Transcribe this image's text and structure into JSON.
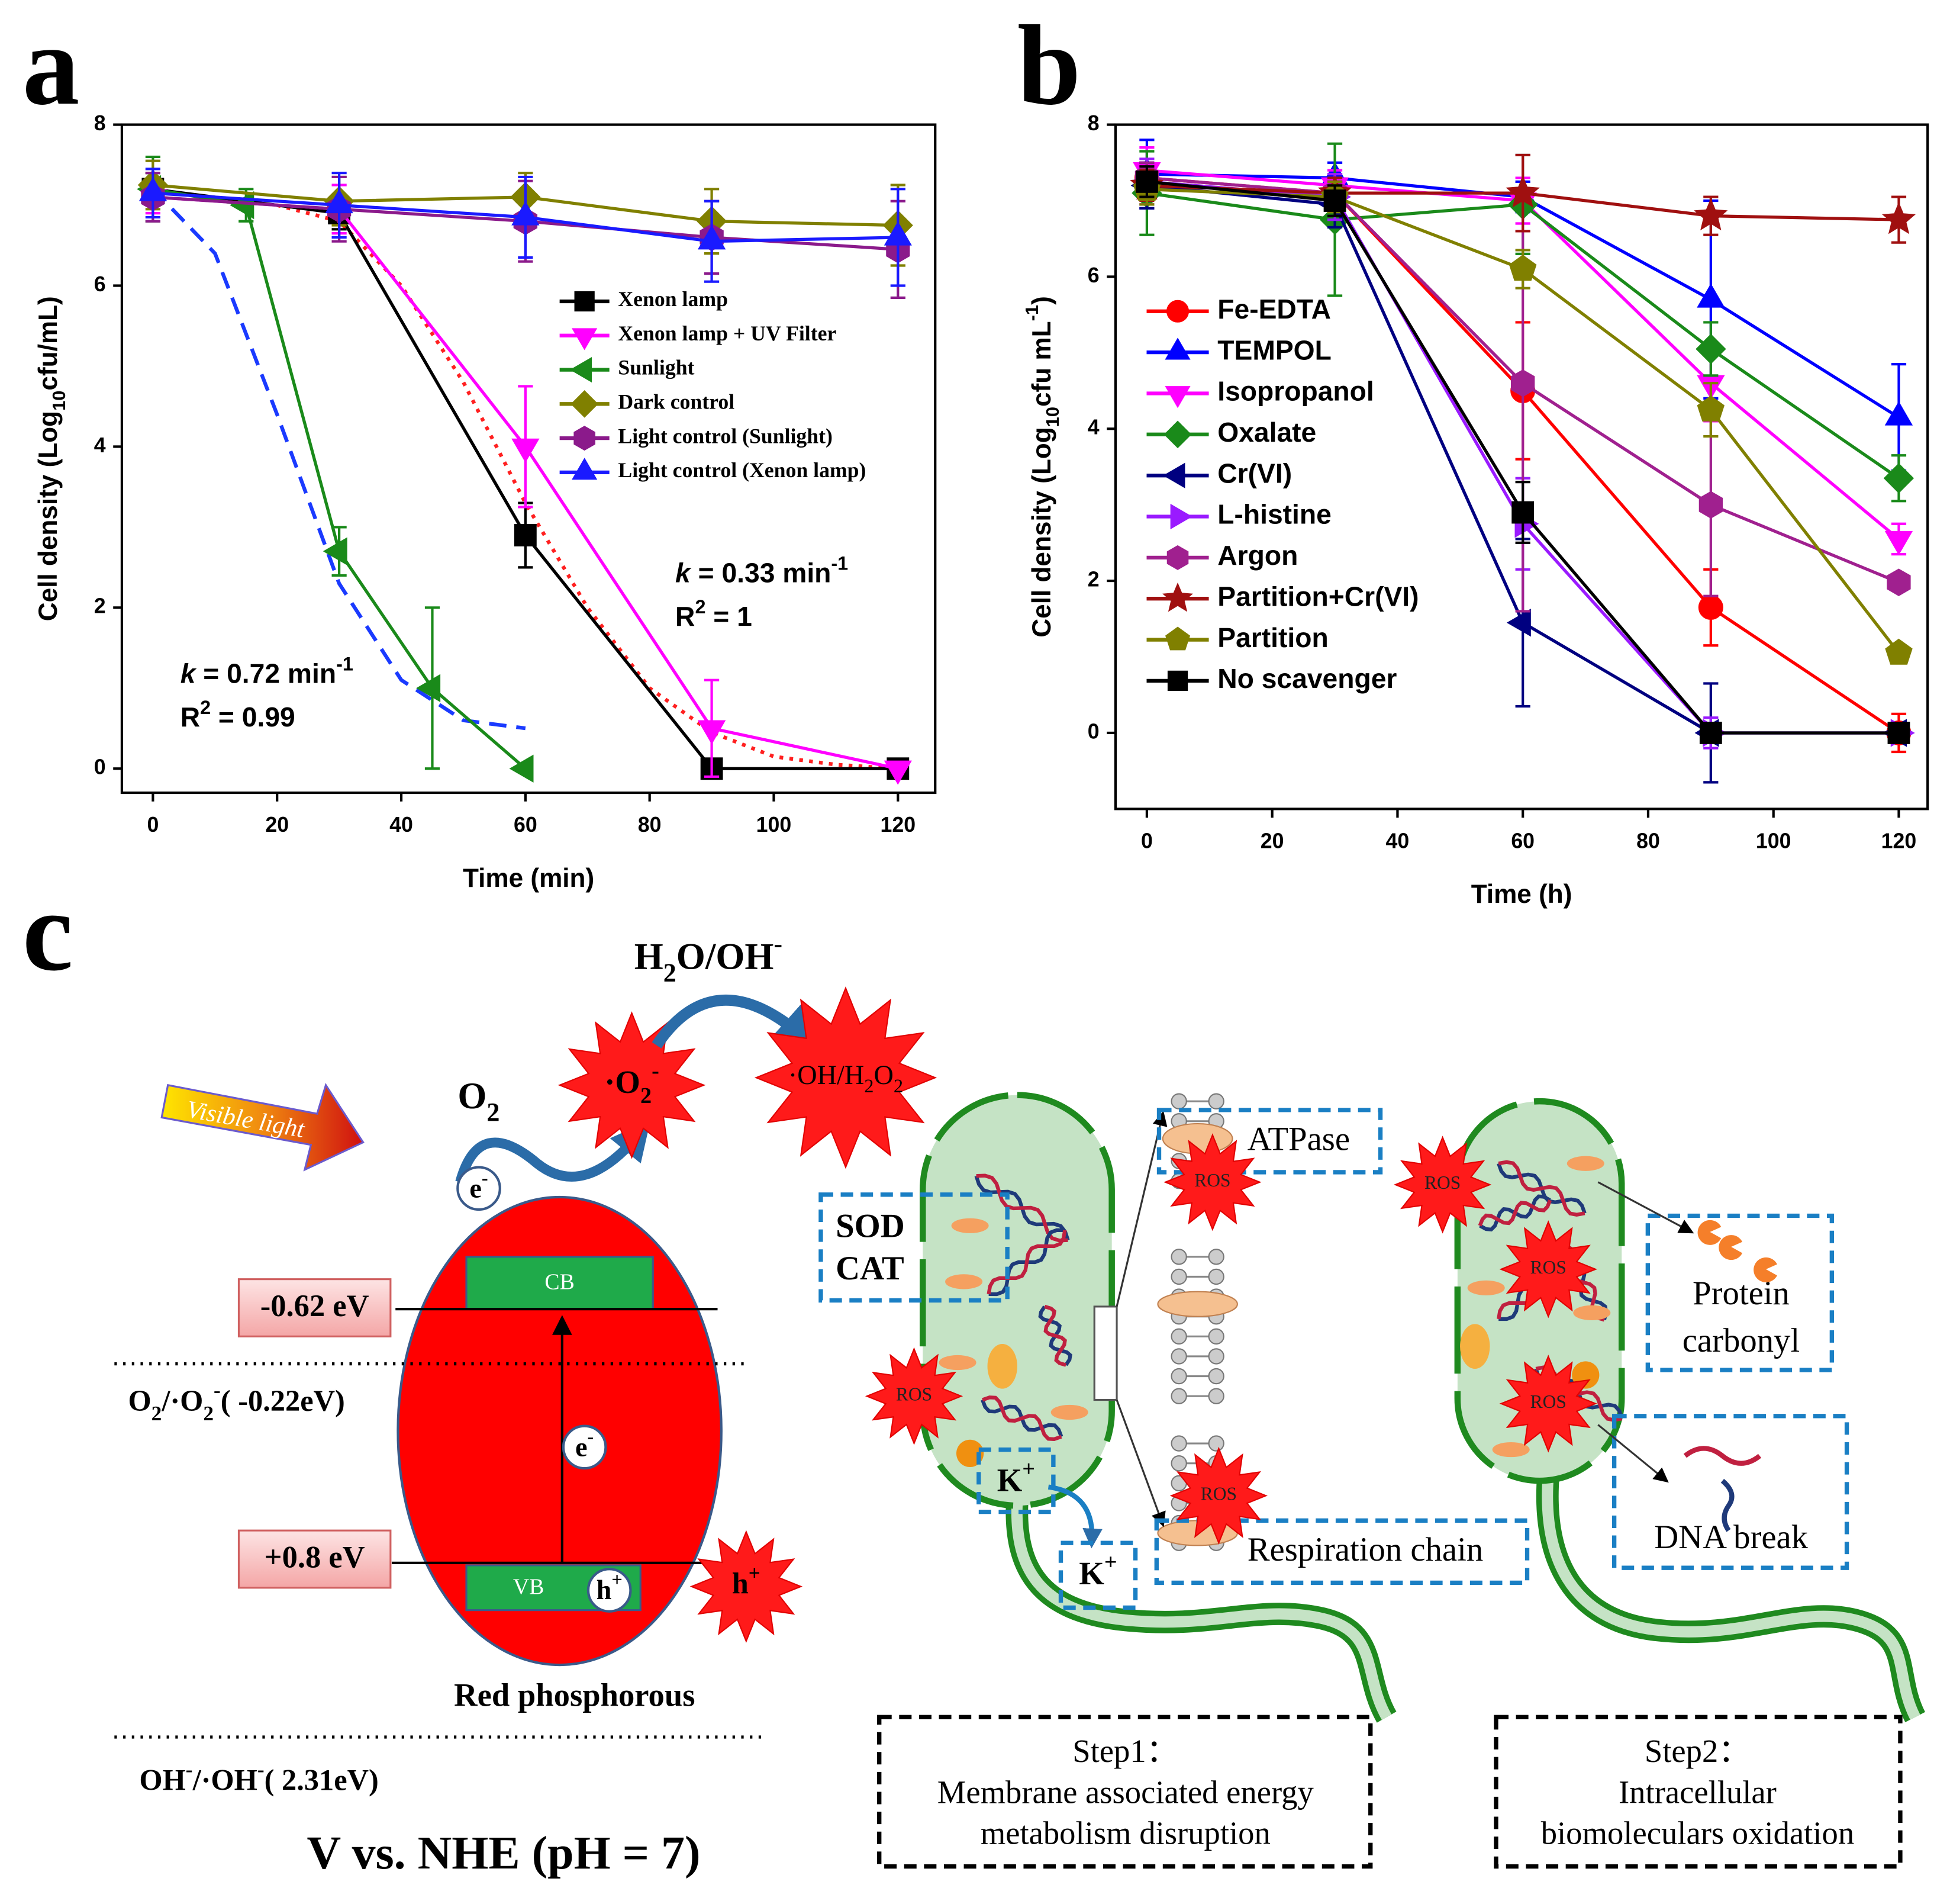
{
  "chart_data": [
    {
      "type": "line",
      "panel": "a",
      "xlabel": "Time (min)",
      "ylabel": [
        "Cell density (Log",
        {
          "text": "10",
          "style": "sub"
        },
        "cfu/mL)"
      ],
      "xlim": [
        -5,
        126
      ],
      "xticks": [
        0,
        20,
        40,
        60,
        80,
        100,
        120
      ],
      "ylim": [
        -0.3,
        8
      ],
      "yticks": [
        0,
        2,
        4,
        6,
        8
      ],
      "legend_position": "center right",
      "series": [
        {
          "name": "Xenon lamp",
          "color": "#000000",
          "marker": "square",
          "x": [
            0,
            30,
            60,
            90,
            120
          ],
          "values": [
            7.2,
            6.9,
            2.9,
            0,
            0
          ],
          "errors": [
            0.2,
            0.2,
            0.4,
            0,
            0
          ]
        },
        {
          "name": "Xenon lamp + UV Filter",
          "color": "#ff00ff",
          "marker": "triangle-down",
          "x": [
            0,
            30,
            60,
            90,
            120
          ],
          "values": [
            7.1,
            6.95,
            4.0,
            0.5,
            0
          ],
          "errors": [
            0.2,
            0.3,
            0.75,
            0.6,
            0
          ]
        },
        {
          "name": "Sunlight",
          "color": "#1a8a1a",
          "marker": "triangle-left",
          "x": [
            0,
            15,
            30,
            45,
            60
          ],
          "values": [
            7.2,
            7.0,
            2.7,
            1.0,
            0
          ],
          "errors": [
            0.4,
            0.2,
            0.3,
            1.0,
            0
          ]
        },
        {
          "name": "Dark control",
          "color": "#808000",
          "marker": "diamond",
          "x": [
            0,
            30,
            60,
            90,
            120
          ],
          "values": [
            7.25,
            7.05,
            7.1,
            6.8,
            6.75
          ],
          "errors": [
            0.3,
            0.3,
            0.3,
            0.4,
            0.5
          ]
        },
        {
          "name": "Light control (Sunlight)",
          "color": "#8b1a8b",
          "marker": "hexagon",
          "x": [
            0,
            30,
            60,
            90,
            120
          ],
          "values": [
            7.1,
            6.95,
            6.8,
            6.6,
            6.45
          ],
          "errors": [
            0.3,
            0.4,
            0.5,
            0.45,
            0.6
          ]
        },
        {
          "name": "Light control (Xenon lamp)",
          "color": "#1a1aff",
          "marker": "triangle-up",
          "x": [
            0,
            30,
            60,
            90,
            120
          ],
          "values": [
            7.15,
            7.0,
            6.85,
            6.55,
            6.6
          ],
          "errors": [
            0.3,
            0.4,
            0.5,
            0.5,
            0.6
          ]
        }
      ],
      "fits": [
        {
          "color": "#1a3aff",
          "dash": "dashed",
          "x": [
            0,
            10,
            20,
            30,
            40,
            50,
            60
          ],
          "values": [
            7.2,
            6.4,
            4.4,
            2.3,
            1.1,
            0.6,
            0.5
          ]
        },
        {
          "color": "#ff2020",
          "dash": "dotted",
          "x": [
            20,
            30,
            40,
            50,
            60,
            70,
            80,
            90,
            100,
            110,
            120
          ],
          "values": [
            7.0,
            6.8,
            6.0,
            4.8,
            3.3,
            2.0,
            1.0,
            0.45,
            0.15,
            0.05,
            0
          ]
        }
      ],
      "annotations": [
        [
          {
            "text": "k",
            "style": "italic"
          },
          " = 0.72 min",
          {
            "text": "-1",
            "style": "sup"
          }
        ],
        [
          "R",
          {
            "text": "2",
            "style": "sup"
          },
          " = 0.99"
        ],
        [
          {
            "text": "k",
            "style": "italic"
          },
          " = 0.33 min",
          {
            "text": "-1",
            "style": "sup"
          }
        ],
        [
          "R",
          {
            "text": "2",
            "style": "sup"
          },
          " = 1"
        ]
      ]
    },
    {
      "type": "line",
      "panel": "b",
      "xlabel": "Time (h)",
      "ylabel": [
        "Cell density (Log",
        {
          "text": "10",
          "style": "sub"
        },
        "cfu mL",
        {
          "text": "-1",
          "style": "sup"
        },
        ")"
      ],
      "xlim": [
        -5,
        124.6
      ],
      "xticks": [
        0,
        20,
        40,
        60,
        80,
        100,
        120
      ],
      "ylim": [
        -1,
        8
      ],
      "yticks": [
        0,
        2,
        4,
        6,
        8
      ],
      "legend_position": "center left",
      "x": [
        0,
        30,
        60,
        90,
        120
      ],
      "series": [
        {
          "name": "Fe-EDTA",
          "color": "#ff0000",
          "marker": "circle",
          "values": [
            7.3,
            7.1,
            4.5,
            1.65,
            0
          ],
          "errors": [
            0.2,
            0.2,
            0.9,
            0.5,
            0.25
          ]
        },
        {
          "name": "TEMPOL",
          "color": "#0000ff",
          "marker": "triangle-up",
          "values": [
            7.35,
            7.3,
            7.05,
            5.7,
            4.15
          ],
          "errors": [
            0.45,
            0.2,
            0.2,
            1.3,
            0.7
          ]
        },
        {
          "name": "Isopropanol",
          "color": "#ff00ff",
          "marker": "triangle-down",
          "values": [
            7.4,
            7.2,
            7.0,
            4.6,
            2.55
          ],
          "errors": [
            0.3,
            0.2,
            0.3,
            0.5,
            0.2
          ]
        },
        {
          "name": "Oxalate",
          "color": "#1a8a1a",
          "marker": "diamond",
          "values": [
            7.1,
            6.75,
            6.95,
            5.05,
            3.35
          ],
          "errors": [
            0.55,
            1.0,
            0.65,
            0.35,
            0.3
          ]
        },
        {
          "name": "Cr(VI)",
          "color": "#000080",
          "marker": "triangle-left",
          "values": [
            7.2,
            6.95,
            1.45,
            0,
            0
          ],
          "errors": [
            0.3,
            0.3,
            1.1,
            0.65,
            0
          ]
        },
        {
          "name": "L-histine",
          "color": "#9a1aff",
          "marker": "triangle-right",
          "values": [
            7.25,
            7.05,
            2.75,
            0,
            0
          ],
          "errors": [
            0.3,
            0.3,
            0.6,
            0.2,
            0
          ]
        },
        {
          "name": "Argon",
          "color": "#a0208f",
          "marker": "hexagon",
          "values": [
            7.3,
            7.1,
            4.6,
            3.0,
            1.98
          ],
          "errors": [
            0.2,
            0.2,
            3.0,
            1.2,
            0.1
          ]
        },
        {
          "name": "Partition+Cr(VI)",
          "color": "#a01010",
          "marker": "star",
          "values": [
            7.2,
            7.1,
            7.1,
            6.8,
            6.75
          ],
          "errors": [
            0.2,
            0.2,
            0.5,
            0.25,
            0.3
          ]
        },
        {
          "name": "Partition",
          "color": "#808000",
          "marker": "pentagon",
          "values": [
            7.15,
            7.05,
            6.1,
            4.25,
            1.05
          ],
          "errors": [
            0.2,
            0.2,
            0.25,
            0.35,
            0.1
          ]
        },
        {
          "name": "No scavenger",
          "color": "#000000",
          "marker": "square",
          "values": [
            7.25,
            7.0,
            2.9,
            0,
            0
          ],
          "errors": [
            0.2,
            0.2,
            0.4,
            0,
            0
          ]
        }
      ]
    }
  ],
  "diagram": {
    "panel": "c",
    "visible_light": "Visible light",
    "oxygen": [
      "O",
      {
        "text": "2",
        "style": "sub"
      }
    ],
    "superoxide": [
      "·O",
      {
        "text": "2",
        "style": "sub"
      },
      {
        "text": "-",
        "style": "sup"
      }
    ],
    "water": [
      "H",
      {
        "text": "2",
        "style": "sub"
      },
      "O/OH",
      {
        "text": "-",
        "style": "sup"
      }
    ],
    "hydroxyl": [
      "·OH/H",
      {
        "text": "2",
        "style": "sub"
      },
      "O",
      {
        "text": "2",
        "style": "sub"
      }
    ],
    "electron": [
      "e",
      {
        "text": "-",
        "style": "sup"
      }
    ],
    "hole": [
      "h",
      {
        "text": "+",
        "style": "sup"
      }
    ],
    "cb": "CB",
    "vb": "VB",
    "cb_potential": "-0.62 eV",
    "vb_potential": "+0.8 eV",
    "o2_potential": [
      "O",
      {
        "text": "2",
        "style": "sub"
      },
      "/·O",
      {
        "text": "2",
        "style": "sub"
      },
      {
        "text": "-",
        "style": "sup"
      },
      "( -0.22eV)"
    ],
    "material": "Red phosphorous",
    "oh_potential": [
      "OH",
      {
        "text": "-",
        "style": "sup"
      },
      "/·OH",
      {
        "text": "-",
        "style": "sup"
      },
      "( 2.31eV)"
    ],
    "reference": "V vs. NHE (pH = 7)",
    "sod": "SOD",
    "cat": "CAT",
    "atpase": "ATPase",
    "respiration": "Respiration chain",
    "potassium": [
      "K",
      {
        "text": "+",
        "style": "sup"
      }
    ],
    "protein": [
      "Protein",
      "carbonyl"
    ],
    "dna": "DNA break",
    "ros": "ROS",
    "step1": [
      "Step1：",
      "Membrane associated energy",
      "metabolism disruption"
    ],
    "step2": [
      "Step2：",
      "Intracellular",
      "biomoleculars oxidation"
    ]
  }
}
